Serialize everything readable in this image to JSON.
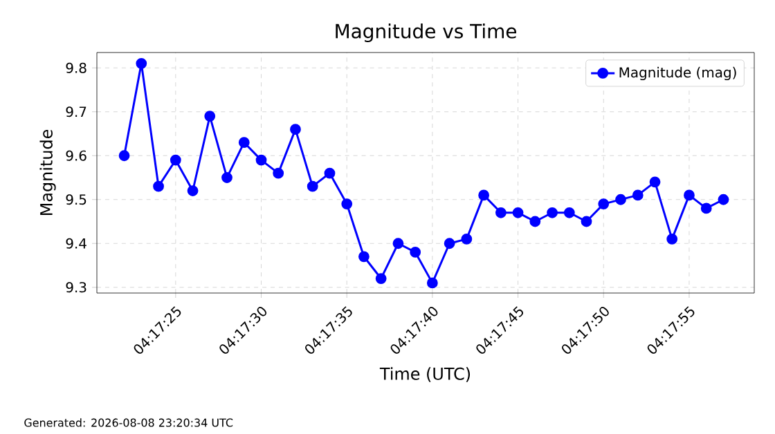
{
  "chart_data": {
    "type": "line",
    "title": "Magnitude vs Time",
    "xlabel": "Time (UTC)",
    "ylabel": "Magnitude",
    "x": [
      4.289444,
      4.289722,
      4.29,
      4.290278,
      4.290556,
      4.290833,
      4.291111,
      4.291389,
      4.291667,
      4.291944,
      4.292222,
      4.2925,
      4.292778,
      4.293056,
      4.293333,
      4.293611,
      4.293889,
      4.294167,
      4.294444,
      4.294722,
      4.295,
      4.295278,
      4.295556,
      4.295833,
      4.296111,
      4.296389,
      4.296667,
      4.296944,
      4.297222,
      4.2975,
      4.297778,
      4.298056,
      4.298333,
      4.298611,
      4.298889,
      4.299167
    ],
    "series": [
      {
        "name": "Magnitude (mag)",
        "color": "#0000ff",
        "values": [
          9.6,
          9.81,
          9.53,
          9.59,
          9.52,
          9.69,
          9.55,
          9.63,
          9.59,
          9.56,
          9.66,
          9.53,
          9.56,
          9.49,
          9.37,
          9.32,
          9.4,
          9.38,
          9.31,
          9.4,
          9.41,
          9.51,
          9.47,
          9.47,
          9.45,
          9.47,
          9.47,
          9.45,
          9.49,
          9.5,
          9.51,
          9.54,
          9.41,
          9.51,
          9.48,
          9.5
        ]
      }
    ],
    "xlim": [
      4.289,
      4.299667
    ],
    "ylim": [
      9.287,
      9.835
    ],
    "xticks": [
      {
        "value": 4.290278,
        "label": "04:17:25"
      },
      {
        "value": 4.291667,
        "label": "04:17:30"
      },
      {
        "value": 4.293056,
        "label": "04:17:35"
      },
      {
        "value": 4.294444,
        "label": "04:17:40"
      },
      {
        "value": 4.295833,
        "label": "04:17:45"
      },
      {
        "value": 4.297222,
        "label": "04:17:50"
      },
      {
        "value": 4.298611,
        "label": "04:17:55"
      }
    ],
    "yticks": [
      9.3,
      9.4,
      9.5,
      9.6,
      9.7,
      9.8
    ],
    "grid": true,
    "legend": "top right",
    "marker": "circle",
    "line_style": "solid",
    "annotations": [
      "Generated: 2026-08-08 23:20:34 UTC"
    ]
  }
}
